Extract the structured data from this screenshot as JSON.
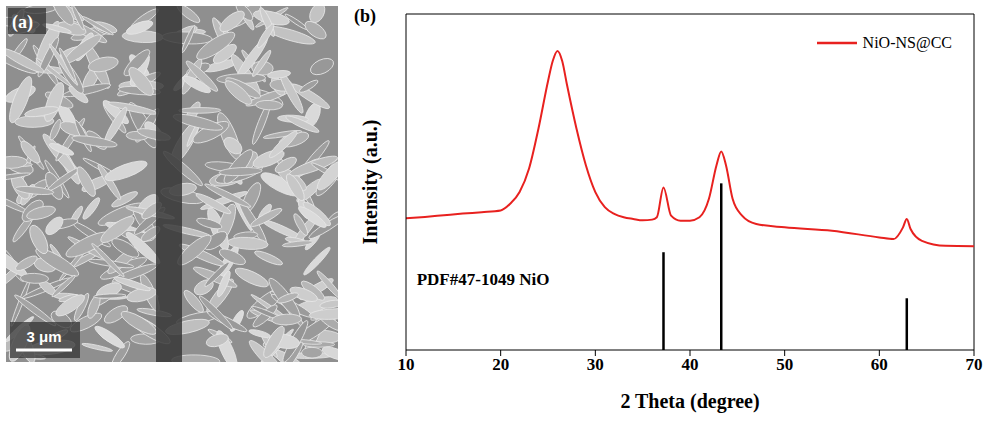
{
  "image_panel": {
    "label": "(a)",
    "scale_bar": "3 μm"
  },
  "chart_data": {
    "type": "line",
    "label": "(b)",
    "x_label": "2 Theta (degree)",
    "y_label": "Intensity (a.u.)",
    "x": [
      10,
      12,
      14,
      16,
      18,
      20,
      21,
      22,
      23,
      24,
      25,
      25.5,
      26,
      26.5,
      27,
      28,
      29,
      30,
      31,
      32,
      33,
      34,
      35,
      36,
      36.5,
      37.2,
      38,
      39,
      40,
      41,
      42,
      42.8,
      43.3,
      43.8,
      44.5,
      45.5,
      47,
      50,
      55,
      60,
      61.5,
      62.5,
      62.9,
      63.3,
      64.5,
      67,
      70
    ],
    "series": [
      {
        "name": "NiO-NS@CC",
        "color": "#e8211f",
        "values": [
          39.2,
          39.6,
          40.1,
          40.6,
          41.0,
          41.5,
          43.5,
          47,
          54,
          66,
          80,
          86,
          89,
          86,
          79,
          66,
          55,
          47,
          42.5,
          40.5,
          39.5,
          39,
          38.6,
          38.8,
          39.5,
          48.4,
          40,
          38.5,
          38.5,
          39.5,
          45,
          55,
          59.1,
          55,
          45,
          40,
          37.5,
          36.5,
          35.5,
          33.5,
          33,
          36.5,
          39,
          36,
          32.5,
          31,
          30.9
        ]
      }
    ],
    "reference": {
      "label": "PDF#47-1049 NiO",
      "x": [
        37.2,
        43.3,
        62.9
      ],
      "values": [
        29.1,
        49.6,
        15.4
      ],
      "color": "#000000"
    },
    "xlim": [
      10,
      70
    ],
    "xticks": [
      10,
      20,
      30,
      40,
      50,
      60,
      70
    ],
    "ylim": [
      0,
      100
    ],
    "tick_labels": "x",
    "grid": false,
    "legend": "upper right"
  }
}
